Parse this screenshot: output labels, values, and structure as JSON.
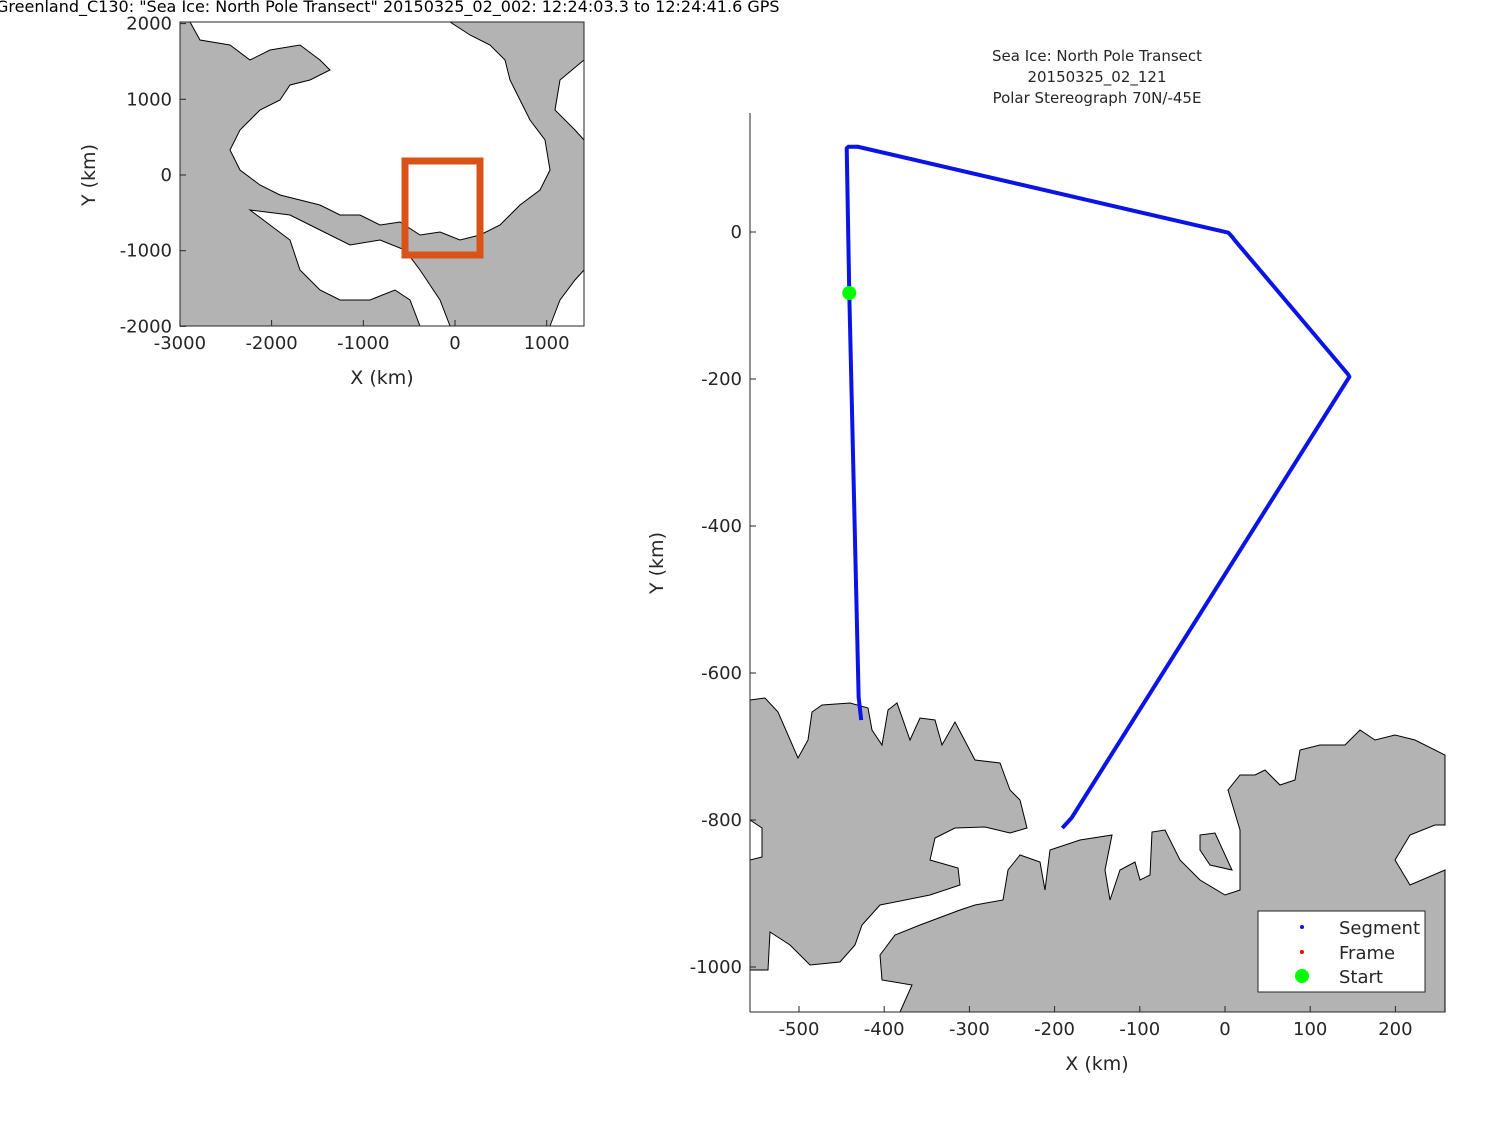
{
  "figure_title": "Greenland_C130: \"Sea Ice: North Pole Transect\"  20150325_02_002: 12:24:03.3 to 12:24:41.6 GPS",
  "colors": {
    "land": "#b3b3b3",
    "ocean": "#ffffff",
    "track": "#0a14e6",
    "start": "#00ff00",
    "frame": "#ff0000",
    "inset_box": "#d95319"
  },
  "chart_data": [
    {
      "type": "map-inset",
      "xlabel": "X (km)",
      "ylabel": "Y (km)",
      "xlim": [
        -3000,
        1400
      ],
      "ylim": [
        -2000,
        2000
      ],
      "xticks": [
        "-3000",
        "-2000",
        "-1000",
        "0",
        "1000"
      ],
      "yticks": [
        "2000",
        "1000",
        "0",
        "-1000",
        "-2000"
      ],
      "xtick_values": [
        -3000,
        -2000,
        -1000,
        0,
        1000
      ],
      "ytick_values": [
        2000,
        1000,
        0,
        -1000,
        -2000
      ],
      "highlight_box": {
        "x": [
          -570,
          284
        ],
        "y": [
          -1070,
          198
        ]
      }
    },
    {
      "type": "map-line",
      "title_lines": [
        "Sea Ice: North Pole Transect",
        "20150325_02_121",
        "Polar Stereograph 70N/-45E"
      ],
      "xlabel": "X (km)",
      "ylabel": "Y (km)",
      "xlim": [
        -558,
        258
      ],
      "ylim": [
        -1061,
        162
      ],
      "xticks": [
        "-500",
        "-400",
        "-300",
        "-200",
        "-100",
        "0",
        "100",
        "200"
      ],
      "xtick_values": [
        -500,
        -400,
        -300,
        -200,
        -100,
        0,
        100,
        200
      ],
      "yticks": [
        "0",
        "-200",
        "-400",
        "-600",
        "-800",
        "-1000"
      ],
      "ytick_values": [
        0,
        -200,
        -400,
        -600,
        -800,
        -1000
      ],
      "track": {
        "x": [
          -427,
          -430,
          -441,
          -444,
          -442,
          -431,
          4,
          8,
          12,
          144,
          146,
          -180,
          -191
        ],
        "y": [
          -664,
          -633,
          -83,
          114,
          116,
          116,
          -1,
          -6,
          -12,
          -193,
          -197,
          -797,
          -811
        ]
      },
      "start": {
        "x": -441,
        "y": -83
      },
      "legend": {
        "position": "bottom-right",
        "entries": [
          "Segment",
          "Frame",
          "Start"
        ]
      }
    }
  ]
}
